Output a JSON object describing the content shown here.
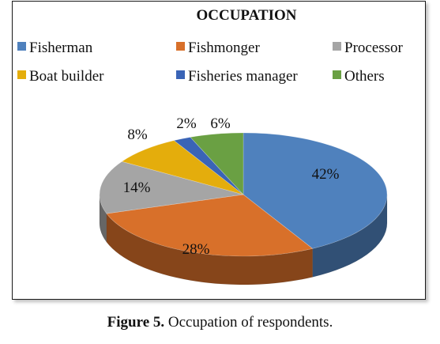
{
  "chart_data": {
    "type": "pie",
    "style": "3d",
    "title": "OCCUPATION",
    "categories": [
      "Fisherman",
      "Fishmonger",
      "Processor",
      "Boat builder",
      "Fisheries manager",
      "Others"
    ],
    "values": [
      42,
      28,
      14,
      8,
      2,
      6
    ],
    "data_labels": [
      "42%",
      "28%",
      "14%",
      "8%",
      "2%",
      "6%"
    ],
    "colors": [
      "#4f81bd",
      "#d8702a",
      "#a5a5a5",
      "#e4ad0c",
      "#3a64b6",
      "#6aa043"
    ],
    "legend_position": "top"
  },
  "caption": {
    "label": "Figure 5.",
    "text": " Occupation of respondents."
  }
}
